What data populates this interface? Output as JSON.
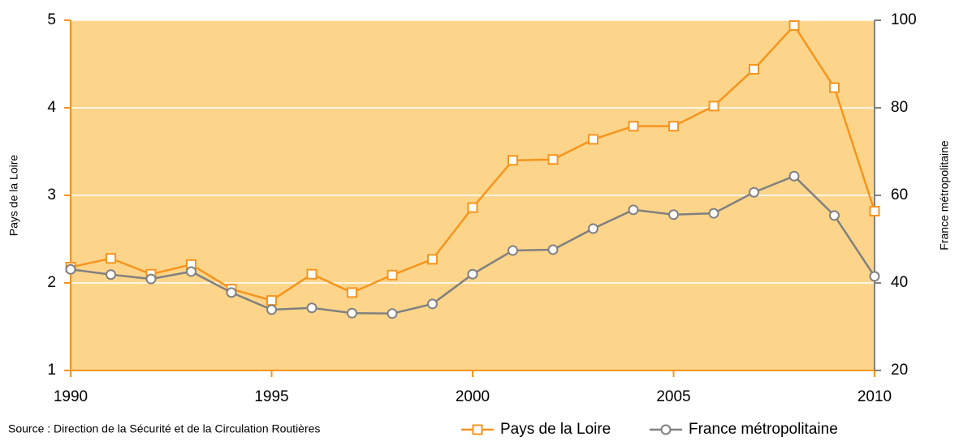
{
  "chart_data": {
    "type": "line",
    "source": "Source : Direction de la Sécurité et de la Circulation Routières",
    "ylabel": "Pays de la Loire",
    "y2label": "France métropolitaine",
    "x": [
      1990,
      1991,
      1992,
      1993,
      1994,
      1995,
      1996,
      1997,
      1998,
      1999,
      2000,
      2001,
      2002,
      2003,
      2004,
      2005,
      2006,
      2007,
      2008,
      2009,
      2010
    ],
    "xlim": [
      1990,
      2010
    ],
    "xticks": [
      1990,
      1995,
      2000,
      2005,
      2010
    ],
    "ylim": [
      1,
      5
    ],
    "yticks": [
      1,
      2,
      3,
      4,
      5
    ],
    "y2lim": [
      20,
      100
    ],
    "y2ticks": [
      20,
      40,
      60,
      80,
      100
    ],
    "grid": true,
    "background": "#fdd58a",
    "legend": "bottom-right",
    "series": [
      {
        "name": "Pays de la Loire",
        "color": "#f7941d",
        "marker": "square",
        "values": [
          2.18,
          2.28,
          2.1,
          2.21,
          1.93,
          1.8,
          2.1,
          1.89,
          2.09,
          2.27,
          2.86,
          3.4,
          3.41,
          3.64,
          3.79,
          3.79,
          4.02,
          4.44,
          4.94,
          4.23,
          2.82
        ]
      },
      {
        "name": "France métropolitaine",
        "color": "#808080",
        "marker": "circle",
        "axis": "y2",
        "values": [
          43.1,
          41.9,
          40.9,
          42.6,
          37.8,
          33.9,
          34.3,
          33.1,
          33.0,
          35.2,
          42.0,
          47.4,
          47.6,
          52.4,
          56.7,
          55.6,
          55.9,
          60.7,
          64.4,
          55.4,
          41.5
        ]
      }
    ]
  }
}
